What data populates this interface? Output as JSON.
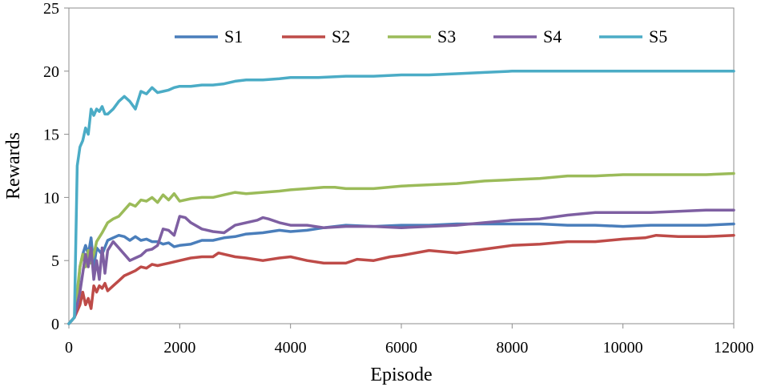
{
  "chart_data": {
    "type": "line",
    "title": "",
    "xlabel": "Episode",
    "ylabel": "Rewards",
    "xlim": [
      0,
      12000
    ],
    "ylim": [
      0,
      25
    ],
    "xticks": [
      0,
      2000,
      4000,
      6000,
      8000,
      10000,
      12000
    ],
    "yticks": [
      0,
      5,
      10,
      15,
      20,
      25
    ],
    "legend_position": "top",
    "series": [
      {
        "name": "S1",
        "color": "#4a7ebb",
        "x": [
          0,
          100,
          150,
          200,
          250,
          300,
          350,
          400,
          450,
          500,
          600,
          700,
          800,
          900,
          1000,
          1100,
          1200,
          1300,
          1400,
          1500,
          1600,
          1700,
          1800,
          1900,
          2000,
          2200,
          2400,
          2600,
          2800,
          3000,
          3200,
          3500,
          3800,
          4000,
          4300,
          4600,
          5000,
          5500,
          6000,
          6500,
          7000,
          7500,
          8000,
          8500,
          9000,
          9500,
          10000,
          10500,
          11000,
          11500,
          12000
        ],
        "values": [
          0,
          0.5,
          2,
          4.5,
          5.5,
          6.2,
          5.5,
          6.8,
          4.5,
          6.0,
          5.5,
          6.6,
          6.8,
          7.0,
          6.9,
          6.6,
          6.9,
          6.6,
          6.7,
          6.5,
          6.5,
          6.3,
          6.4,
          6.1,
          6.2,
          6.3,
          6.6,
          6.6,
          6.8,
          6.9,
          7.1,
          7.2,
          7.4,
          7.3,
          7.4,
          7.6,
          7.8,
          7.7,
          7.8,
          7.8,
          7.9,
          7.9,
          7.9,
          7.9,
          7.8,
          7.8,
          7.7,
          7.8,
          7.8,
          7.8,
          7.9
        ]
      },
      {
        "name": "S2",
        "color": "#be4b48",
        "x": [
          0,
          100,
          200,
          250,
          300,
          350,
          400,
          450,
          500,
          550,
          600,
          650,
          700,
          800,
          900,
          1000,
          1100,
          1200,
          1300,
          1400,
          1500,
          1600,
          1700,
          1800,
          1900,
          2000,
          2200,
          2400,
          2600,
          2700,
          2800,
          3000,
          3200,
          3500,
          3800,
          4000,
          4300,
          4600,
          5000,
          5200,
          5500,
          5800,
          6000,
          6500,
          7000,
          7500,
          8000,
          8500,
          9000,
          9500,
          10000,
          10400,
          10600,
          11000,
          11500,
          12000
        ],
        "values": [
          0,
          0.5,
          1.5,
          2.5,
          1.5,
          2.0,
          1.2,
          3.0,
          2.5,
          3.0,
          2.8,
          3.2,
          2.6,
          3.0,
          3.4,
          3.8,
          4.0,
          4.2,
          4.5,
          4.4,
          4.7,
          4.6,
          4.7,
          4.8,
          4.9,
          5.0,
          5.2,
          5.3,
          5.3,
          5.6,
          5.5,
          5.3,
          5.2,
          5.0,
          5.2,
          5.3,
          5.0,
          4.8,
          4.8,
          5.1,
          5.0,
          5.3,
          5.4,
          5.8,
          5.6,
          5.9,
          6.2,
          6.3,
          6.5,
          6.5,
          6.7,
          6.8,
          7.0,
          6.9,
          6.9,
          7.0
        ]
      },
      {
        "name": "S3",
        "color": "#9bbb59",
        "x": [
          0,
          100,
          200,
          250,
          300,
          350,
          400,
          450,
          500,
          600,
          700,
          800,
          900,
          1000,
          1100,
          1200,
          1300,
          1400,
          1500,
          1600,
          1700,
          1800,
          1900,
          2000,
          2200,
          2400,
          2600,
          2800,
          3000,
          3200,
          3500,
          3800,
          4000,
          4300,
          4600,
          4800,
          5000,
          5500,
          6000,
          6500,
          7000,
          7500,
          8000,
          8500,
          9000,
          9500,
          10000,
          10500,
          11000,
          11500,
          12000
        ],
        "values": [
          0,
          0.5,
          4.5,
          5.5,
          4.5,
          5.8,
          4.8,
          5.5,
          6.5,
          7.2,
          8.0,
          8.3,
          8.5,
          9.0,
          9.5,
          9.3,
          9.8,
          9.7,
          10.0,
          9.6,
          10.2,
          9.8,
          10.3,
          9.7,
          9.9,
          10.0,
          10.0,
          10.2,
          10.4,
          10.3,
          10.4,
          10.5,
          10.6,
          10.7,
          10.8,
          10.8,
          10.7,
          10.7,
          10.9,
          11.0,
          11.1,
          11.3,
          11.4,
          11.5,
          11.7,
          11.7,
          11.8,
          11.8,
          11.8,
          11.8,
          11.9
        ]
      },
      {
        "name": "S4",
        "color": "#7e5fa2",
        "x": [
          0,
          100,
          200,
          250,
          300,
          350,
          400,
          450,
          500,
          550,
          600,
          650,
          700,
          800,
          900,
          1000,
          1100,
          1200,
          1300,
          1400,
          1500,
          1600,
          1700,
          1800,
          1900,
          2000,
          2100,
          2200,
          2400,
          2600,
          2800,
          3000,
          3200,
          3400,
          3500,
          3600,
          3800,
          4000,
          4300,
          4600,
          5000,
          5500,
          6000,
          6500,
          7000,
          7500,
          8000,
          8500,
          9000,
          9500,
          10000,
          10500,
          11000,
          11500,
          12000
        ],
        "values": [
          0,
          0.5,
          2.5,
          4.0,
          5.5,
          4.5,
          6.0,
          3.5,
          5.0,
          3.5,
          6.0,
          4.0,
          5.8,
          6.5,
          6.0,
          5.5,
          5.0,
          5.2,
          5.4,
          5.8,
          5.9,
          6.2,
          7.5,
          7.4,
          7.0,
          8.5,
          8.4,
          8.0,
          7.5,
          7.3,
          7.2,
          7.8,
          8.0,
          8.2,
          8.4,
          8.3,
          8.0,
          7.8,
          7.8,
          7.6,
          7.7,
          7.7,
          7.6,
          7.7,
          7.8,
          8.0,
          8.2,
          8.3,
          8.6,
          8.8,
          8.8,
          8.8,
          8.9,
          9.0,
          9.0
        ]
      },
      {
        "name": "S5",
        "color": "#4bacc6",
        "x": [
          0,
          100,
          150,
          200,
          250,
          300,
          350,
          400,
          450,
          500,
          550,
          600,
          650,
          700,
          800,
          900,
          1000,
          1100,
          1200,
          1300,
          1400,
          1500,
          1600,
          1700,
          1800,
          1900,
          2000,
          2200,
          2400,
          2600,
          2800,
          3000,
          3200,
          3500,
          3800,
          4000,
          4500,
          5000,
          5500,
          6000,
          6500,
          7000,
          7500,
          8000,
          8500,
          9000,
          9500,
          10000,
          10500,
          11000,
          11500,
          12000
        ],
        "values": [
          0,
          0.5,
          12.5,
          14.0,
          14.5,
          15.5,
          15.0,
          17.0,
          16.5,
          17.0,
          16.8,
          17.2,
          16.6,
          16.6,
          17.0,
          17.6,
          18.0,
          17.6,
          17.0,
          18.4,
          18.2,
          18.7,
          18.3,
          18.4,
          18.5,
          18.7,
          18.8,
          18.8,
          18.9,
          18.9,
          19.0,
          19.2,
          19.3,
          19.3,
          19.4,
          19.5,
          19.5,
          19.6,
          19.6,
          19.7,
          19.7,
          19.8,
          19.9,
          20.0,
          20.0,
          20.0,
          20.0,
          20.0,
          20.0,
          20.0,
          20.0,
          20.0
        ]
      }
    ]
  }
}
